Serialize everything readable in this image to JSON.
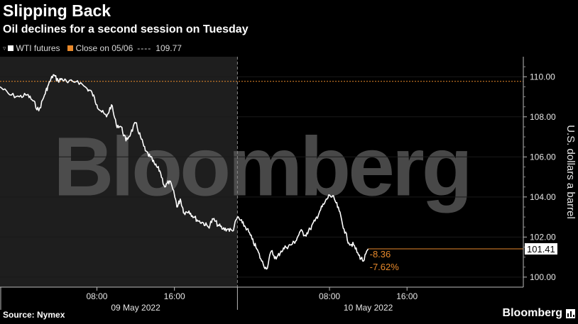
{
  "title": "Slipping Back",
  "subtitle": "Oil declines for a second session on Tuesday",
  "legend": {
    "series_label": "WTI futures",
    "reference_label": "Close on 05/06",
    "reference_value": "109.77",
    "dashes": "----",
    "series_color": "#ffffff",
    "reference_color": "#e8892b"
  },
  "source": "Source: Nymex",
  "brand": "Bloomberg",
  "watermark": "Bloomberg",
  "chart_data": {
    "type": "line",
    "ylabel": "U.S. dollars a barrel",
    "ylim": [
      99.5,
      111
    ],
    "yticks": [
      100,
      102,
      104,
      106,
      108,
      110
    ],
    "ytick_labels": [
      "100.00",
      "102.00",
      "104.00",
      "106.00",
      "108.00",
      "110.00"
    ],
    "x_unit": "hours since 09 May 2022 00:00",
    "xlim": [
      -2,
      52
    ],
    "xticks": [
      {
        "x": 8,
        "label": "08:00"
      },
      {
        "x": 16,
        "label": "16:00"
      },
      {
        "x": 32,
        "label": "08:00"
      },
      {
        "x": 40,
        "label": "16:00"
      }
    ],
    "date_labels": [
      {
        "x": 12,
        "label": "09 May 2022"
      },
      {
        "x": 36,
        "label": "10 May 2022"
      }
    ],
    "session_divider_x": 22.5,
    "shaded_range": [
      -2,
      22.5
    ],
    "reference_line": {
      "value": 109.77,
      "label": "Close on 05/06"
    },
    "series": [
      {
        "name": "WTI futures",
        "x": [
          -2,
          -1,
          0,
          0.8,
          1.4,
          2,
          2.6,
          3,
          3.5,
          4,
          4.4,
          5,
          6,
          7,
          7.5,
          8,
          8.4,
          9,
          9.5,
          10,
          10.5,
          11,
          11.5,
          12,
          12.5,
          13,
          13.5,
          14,
          14.5,
          15,
          15.5,
          16,
          16.3,
          16.6,
          17,
          17.5,
          18,
          18.5,
          19,
          19.5,
          20,
          20.5,
          21,
          21.5,
          22,
          22.5,
          23,
          23.5,
          24,
          24.5,
          25,
          25.5,
          26,
          26.5,
          27,
          27.5,
          28,
          28.5,
          29,
          29.5,
          30,
          30.5,
          31,
          31.5,
          32,
          32.5,
          33,
          33.5,
          34,
          34.5,
          35,
          35.5,
          36
        ],
        "y": [
          109.5,
          109.1,
          109.0,
          109.1,
          108.8,
          108.3,
          109.1,
          109.6,
          110.1,
          109.8,
          109.9,
          109.7,
          109.8,
          109.4,
          109.2,
          108.6,
          108.3,
          108.0,
          108.6,
          107.6,
          107.5,
          106.8,
          107.2,
          107.7,
          107.0,
          106.3,
          106.0,
          105.6,
          105.3,
          104.5,
          104.8,
          104.1,
          103.5,
          103.9,
          103.2,
          103.3,
          103.0,
          102.8,
          102.7,
          102.5,
          102.9,
          102.6,
          102.4,
          102.4,
          102.3,
          103.0,
          102.7,
          102.4,
          101.9,
          101.4,
          100.8,
          100.4,
          101.3,
          100.9,
          101.3,
          101.5,
          101.6,
          101.8,
          102.3,
          102.1,
          102.4,
          102.8,
          103.3,
          103.7,
          104.1,
          103.9,
          103.3,
          102.4,
          101.7,
          101.6,
          101.1,
          100.8,
          101.41
        ]
      }
    ],
    "last_value": "101.41",
    "annotations": [
      "-8.36",
      "-7.62%"
    ]
  }
}
